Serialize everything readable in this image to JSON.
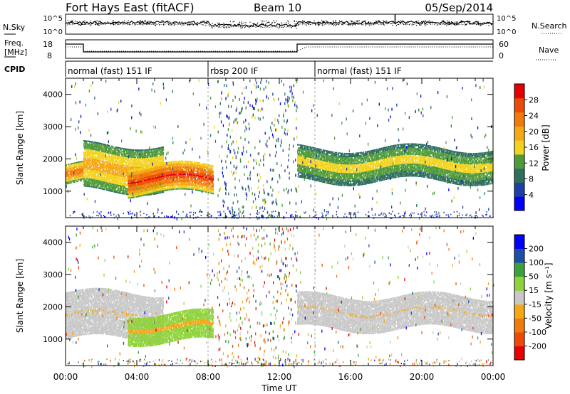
{
  "header": {
    "radar": "Fort Hays East (fitACF)",
    "beam": "Beam 10",
    "date": "05/Sep/2014"
  },
  "noise_panel": {
    "left_label": "N.Sky",
    "right_label": "N.Search",
    "left_ticks": [
      "10^5",
      "10^0"
    ],
    "right_ticks": [
      "10^5",
      "10^0"
    ]
  },
  "freq_panel": {
    "left_label": "Freq.",
    "left_unit": "[MHz]",
    "right_label": "Nave",
    "left_ticks": [
      "18",
      "8"
    ],
    "right_ticks": [
      "60",
      "0"
    ]
  },
  "cpid": {
    "label": "CPID",
    "segments": [
      {
        "text": "normal (fast) 151 IF",
        "start_h": 0.0
      },
      {
        "text": "rbsp 200 IF",
        "start_h": 8.0
      },
      {
        "text": "normal (fast) 151 IF",
        "start_h": 14.0
      }
    ]
  },
  "x_axis": {
    "label": "Time UT",
    "ticks": [
      "00:00",
      "04:00",
      "08:00",
      "12:00",
      "16:00",
      "20:00",
      "00:00"
    ]
  },
  "colors": {
    "power_scale": [
      "#0000ff",
      "#1e3fa8",
      "#2e6f5e",
      "#4f9a3a",
      "#f2d21c",
      "#f5a814",
      "#f07a0c",
      "#ee4a06",
      "#e60000"
    ],
    "velocity_scale": [
      "#e60000",
      "#ee4a06",
      "#f07a0c",
      "#f5a814",
      "#c8c8c8",
      "#8fd33b",
      "#3aa23a",
      "#1e4fa8",
      "#0000ff"
    ],
    "axis": "#000000"
  },
  "chart_data": [
    {
      "type": "heatmap",
      "title": "Power",
      "xlabel": "",
      "ylabel": "Slant Range [km]",
      "xlim_hours": [
        0,
        24
      ],
      "ylim_km": [
        180,
        4500
      ],
      "yticks": [
        "1000",
        "2000",
        "3000",
        "4000"
      ],
      "colorbar": {
        "label": "Power [dB]",
        "ticks": [
          "4",
          "8",
          "12",
          "16",
          "20",
          "24",
          "28"
        ],
        "range": [
          0,
          30
        ]
      },
      "features": [
        {
          "desc": "band",
          "t_start_h": 0.0,
          "t_end_h": 1.0,
          "range_km": [
            1200,
            1800
          ],
          "power_db": 22
        },
        {
          "desc": "band",
          "t_start_h": 1.0,
          "t_end_h": 5.5,
          "range_km": [
            1000,
            2400
          ],
          "power_db": 18
        },
        {
          "desc": "band",
          "t_start_h": 3.5,
          "t_end_h": 8.3,
          "range_km": [
            900,
            1800
          ],
          "power_db": 26
        },
        {
          "desc": "band",
          "t_start_h": 13.0,
          "t_end_h": 24.0,
          "range_km": [
            1300,
            2300
          ],
          "power_db": 14
        }
      ]
    },
    {
      "type": "heatmap",
      "title": "Velocity",
      "xlabel": "Time UT",
      "ylabel": "Slant Range [km]",
      "xlim_hours": [
        0,
        24
      ],
      "ylim_km": [
        180,
        4500
      ],
      "yticks": [
        "1000",
        "2000",
        "3000",
        "4000"
      ],
      "colorbar": {
        "label": "Velocity [m s⁻¹]",
        "ticks": [
          "200",
          "100",
          "50",
          "15",
          "-15",
          "-50",
          "-100",
          "-200"
        ]
      },
      "features": [
        {
          "desc": "band",
          "t_start_h": 0.0,
          "t_end_h": 5.5,
          "range_km": [
            1000,
            2400
          ],
          "velocity_ms": -10
        },
        {
          "desc": "band",
          "t_start_h": 3.5,
          "t_end_h": 8.3,
          "range_km": [
            900,
            1800
          ],
          "velocity_ms": 40
        },
        {
          "desc": "band",
          "t_start_h": 13.0,
          "t_end_h": 24.0,
          "range_km": [
            1300,
            2300
          ],
          "velocity_ms": 0
        }
      ]
    }
  ]
}
